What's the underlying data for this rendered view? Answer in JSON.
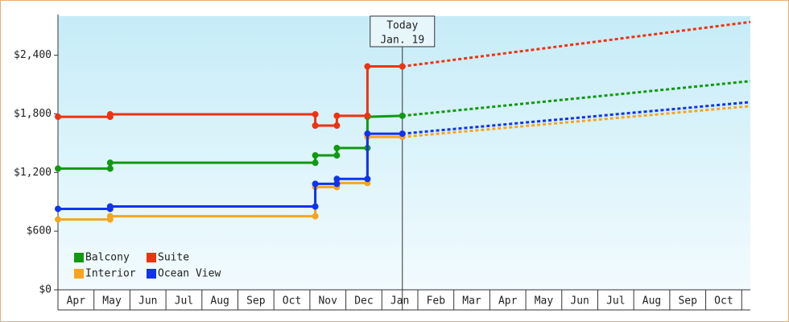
{
  "chart_data": {
    "type": "step-line",
    "xlim": [
      0,
      19.24
    ],
    "xticks": [
      {
        "value": 0.5,
        "label": "Apr"
      },
      {
        "value": 1.5,
        "label": "May"
      },
      {
        "value": 2.5,
        "label": "Jun"
      },
      {
        "value": 3.5,
        "label": "Jul"
      },
      {
        "value": 4.5,
        "label": "Aug"
      },
      {
        "value": 5.5,
        "label": "Sep"
      },
      {
        "value": 6.5,
        "label": "Oct"
      },
      {
        "value": 7.5,
        "label": "Nov"
      },
      {
        "value": 8.5,
        "label": "Dec"
      },
      {
        "value": 9.5,
        "label": "Jan"
      },
      {
        "value": 10.5,
        "label": "Feb"
      },
      {
        "value": 11.5,
        "label": "Mar"
      },
      {
        "value": 12.5,
        "label": "Apr"
      },
      {
        "value": 13.5,
        "label": "May"
      },
      {
        "value": 14.5,
        "label": "Jun"
      },
      {
        "value": 15.5,
        "label": "Jul"
      },
      {
        "value": 16.5,
        "label": "Aug"
      },
      {
        "value": 17.5,
        "label": "Sep"
      },
      {
        "value": 18.5,
        "label": "Oct"
      }
    ],
    "ylim": [
      0,
      2800
    ],
    "yticks": [
      {
        "value": 0,
        "label": "$0"
      },
      {
        "value": 600,
        "label": "$600"
      },
      {
        "value": 1200,
        "label": "$1,200"
      },
      {
        "value": 1800,
        "label": "$1,800"
      },
      {
        "value": 2400,
        "label": "$2,400"
      }
    ],
    "annotation": {
      "x": 9.57,
      "lines": [
        "Today",
        "Jan. 19"
      ]
    },
    "legend": "lower left",
    "series": [
      {
        "name": "Balcony",
        "color": "#119911",
        "x": [
          0,
          1.45,
          1.45,
          7.15,
          7.15,
          7.75,
          7.75,
          8.6,
          8.6,
          9.57
        ],
        "values": [
          1240,
          1240,
          1300,
          1300,
          1375,
          1375,
          1450,
          1450,
          1770,
          1780
        ],
        "forecast": {
          "x": [
            9.57,
            19.24
          ],
          "values": [
            1780,
            2135
          ]
        }
      },
      {
        "name": "Suite",
        "color": "#ee3311",
        "x": [
          0,
          1.45,
          1.45,
          7.15,
          7.15,
          7.75,
          7.75,
          8.6,
          8.6,
          9.57
        ],
        "values": [
          1770,
          1770,
          1795,
          1795,
          1680,
          1680,
          1780,
          1780,
          2285,
          2285
        ],
        "forecast": {
          "x": [
            9.57,
            19.24
          ],
          "values": [
            2285,
            2740
          ]
        }
      },
      {
        "name": "Interior",
        "color": "#f5a520",
        "x": [
          0,
          1.45,
          1.45,
          7.15,
          7.15,
          7.75,
          7.75,
          8.6,
          8.6,
          9.57
        ],
        "values": [
          720,
          720,
          753,
          753,
          1051,
          1051,
          1092,
          1092,
          1564,
          1564
        ],
        "forecast": {
          "x": [
            9.57,
            19.24
          ],
          "values": [
            1564,
            1879
          ]
        }
      },
      {
        "name": "Ocean View",
        "color": "#1133ee",
        "x": [
          0,
          1.45,
          1.45,
          7.15,
          7.15,
          7.75,
          7.75,
          8.6,
          8.6,
          9.57
        ],
        "values": [
          828,
          828,
          852,
          852,
          1084,
          1084,
          1134,
          1134,
          1597,
          1597
        ],
        "forecast": {
          "x": [
            9.57,
            19.24
          ],
          "values": [
            1597,
            1920
          ]
        }
      }
    ]
  }
}
